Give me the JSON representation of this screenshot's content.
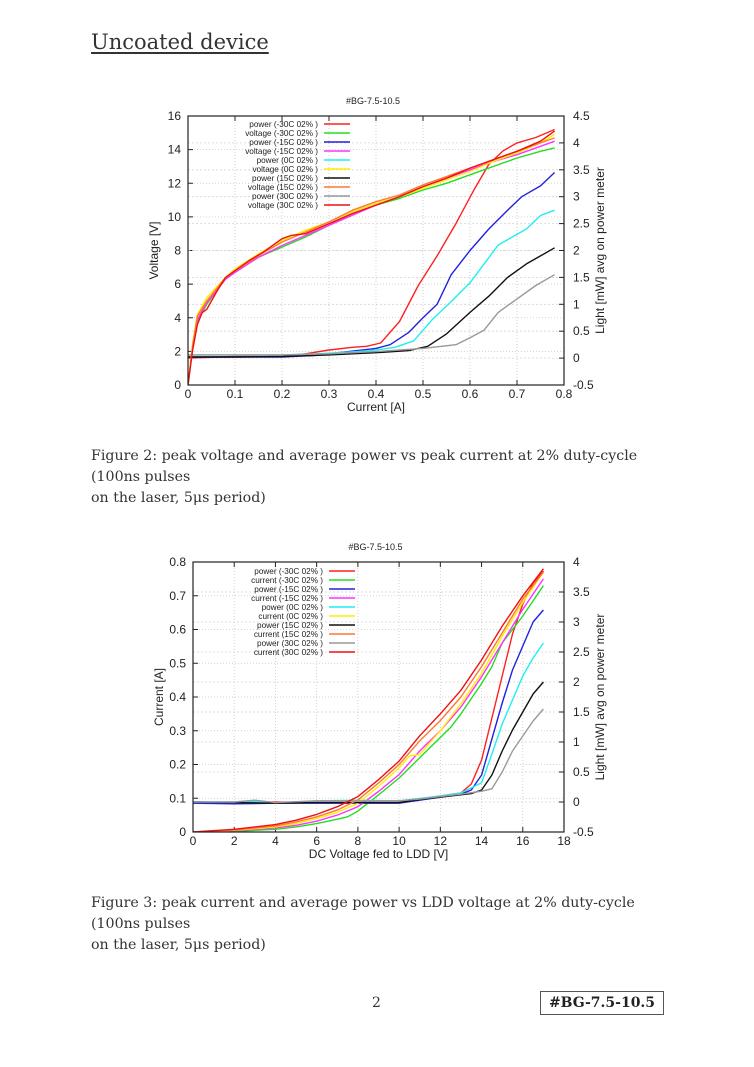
{
  "page": {
    "section_title": "Uncoated device",
    "page_number": "2",
    "doc_id": "#BG-7.5-10.5"
  },
  "figures": [
    {
      "caption_line1": "Figure 2: peak voltage and average power vs peak current at 2% duty-cycle (100ns pulses",
      "caption_line2": "on the laser, 5μs period)"
    },
    {
      "caption_line1": "Figure 3: peak current and average power vs LDD voltage at 2% duty-cycle (100ns pulses",
      "caption_line2": "on the laser, 5μs period)"
    }
  ],
  "chart_data": [
    {
      "type": "line",
      "title": "#BG-7.5-10.5",
      "xlabel": "Current [A]",
      "ylabel": "Voltage [V]",
      "y2label": "Light [mW] avg on power meter",
      "xlim": [
        0,
        0.8
      ],
      "ylim": [
        0,
        16
      ],
      "y2lim": [
        -0.5,
        4.5
      ],
      "xticks": [
        "0",
        "0.1",
        "0.2",
        "0.3",
        "0.4",
        "0.5",
        "0.6",
        "0.7",
        "0.8"
      ],
      "yticks": [
        "0",
        "2",
        "4",
        "6",
        "8",
        "10",
        "12",
        "14",
        "16"
      ],
      "y2ticks": [
        "-0.5",
        "0",
        "0.5",
        "1",
        "1.5",
        "2",
        "2.5",
        "3",
        "3.5",
        "4",
        "4.5"
      ],
      "grid": true,
      "legend_position": "top-left",
      "series": [
        {
          "name": "power (-30C 02% )",
          "color": "#ff2020",
          "axis": "y2",
          "x": [
            0,
            0.1,
            0.2,
            0.25,
            0.3,
            0.35,
            0.38,
            0.41,
            0.45,
            0.49,
            0.53,
            0.57,
            0.61,
            0.64,
            0.67,
            0.7,
            0.74,
            0.78
          ],
          "y": [
            0,
            0.03,
            0.03,
            0.08,
            0.15,
            0.2,
            0.22,
            0.28,
            0.68,
            1.35,
            1.9,
            2.5,
            3.15,
            3.6,
            3.85,
            4.0,
            4.1,
            4.25
          ]
        },
        {
          "name": "voltage (-30C 02% )",
          "color": "#22dd22",
          "axis": "y",
          "x": [
            0,
            0.01,
            0.02,
            0.04,
            0.06,
            0.08,
            0.1,
            0.15,
            0.2,
            0.25,
            0.3,
            0.35,
            0.4,
            0.45,
            0.5,
            0.55,
            0.6,
            0.65,
            0.7,
            0.75,
            0.78
          ],
          "y": [
            0,
            2.3,
            3.8,
            4.8,
            5.6,
            6.3,
            6.7,
            7.6,
            8.2,
            8.8,
            9.5,
            10.2,
            10.7,
            11.1,
            11.6,
            12.0,
            12.5,
            13.0,
            13.5,
            13.9,
            14.1
          ]
        },
        {
          "name": "power (-15C 02% )",
          "color": "#2222dd",
          "axis": "y2",
          "x": [
            0,
            0.1,
            0.2,
            0.27,
            0.32,
            0.36,
            0.4,
            0.43,
            0.47,
            0.5,
            0.53,
            0.56,
            0.6,
            0.64,
            0.68,
            0.71,
            0.75,
            0.78
          ],
          "y": [
            0.02,
            0.02,
            0.02,
            0.05,
            0.1,
            0.14,
            0.18,
            0.25,
            0.48,
            0.75,
            1.0,
            1.55,
            2.0,
            2.4,
            2.75,
            3.0,
            3.2,
            3.45
          ]
        },
        {
          "name": "voltage (-15C 02% )",
          "color": "#ff33ff",
          "axis": "y",
          "x": [
            0,
            0.01,
            0.02,
            0.04,
            0.06,
            0.08,
            0.1,
            0.15,
            0.2,
            0.25,
            0.3,
            0.35,
            0.4,
            0.45,
            0.5,
            0.55,
            0.6,
            0.65,
            0.7,
            0.75,
            0.78
          ],
          "y": [
            0,
            2.3,
            3.9,
            4.9,
            5.6,
            6.3,
            6.7,
            7.6,
            8.3,
            8.9,
            9.5,
            10.1,
            10.7,
            11.2,
            11.8,
            12.3,
            12.8,
            13.3,
            13.7,
            14.2,
            14.5
          ]
        },
        {
          "name": "power (0C 02% )",
          "color": "#22eeee",
          "axis": "y2",
          "x": [
            0,
            0.1,
            0.2,
            0.27,
            0.32,
            0.36,
            0.4,
            0.44,
            0.48,
            0.52,
            0.56,
            0.6,
            0.63,
            0.66,
            0.69,
            0.72,
            0.75,
            0.78
          ],
          "y": [
            0.06,
            0.06,
            0.06,
            0.08,
            0.1,
            0.12,
            0.15,
            0.2,
            0.32,
            0.72,
            1.05,
            1.4,
            1.75,
            2.1,
            2.25,
            2.4,
            2.65,
            2.75
          ]
        },
        {
          "name": "voltage (0C 02% )",
          "color": "#ffee00",
          "axis": "y",
          "x": [
            0,
            0.01,
            0.02,
            0.04,
            0.06,
            0.08,
            0.1,
            0.15,
            0.2,
            0.25,
            0.3,
            0.35,
            0.4,
            0.45,
            0.5,
            0.55,
            0.6,
            0.65,
            0.7,
            0.75,
            0.78
          ],
          "y": [
            0,
            2.5,
            4.2,
            5.2,
            5.8,
            6.4,
            6.9,
            7.8,
            8.6,
            9.2,
            9.7,
            10.3,
            10.8,
            11.2,
            11.7,
            12.2,
            12.7,
            13.3,
            13.8,
            14.4,
            14.9
          ]
        },
        {
          "name": "power (15C 02% )",
          "color": "#111111",
          "axis": "y2",
          "x": [
            0,
            0.1,
            0.2,
            0.3,
            0.35,
            0.4,
            0.47,
            0.51,
            0.55,
            0.6,
            0.64,
            0.68,
            0.72,
            0.75,
            0.78
          ],
          "y": [
            0.02,
            0.02,
            0.03,
            0.06,
            0.08,
            0.1,
            0.14,
            0.22,
            0.45,
            0.85,
            1.15,
            1.5,
            1.75,
            1.9,
            2.05
          ]
        },
        {
          "name": "voltage (15C 02% )",
          "color": "#ff7733",
          "axis": "y",
          "x": [
            0,
            0.01,
            0.02,
            0.04,
            0.06,
            0.08,
            0.1,
            0.15,
            0.2,
            0.25,
            0.3,
            0.35,
            0.4,
            0.45,
            0.5,
            0.55,
            0.6,
            0.65,
            0.7,
            0.75,
            0.78
          ],
          "y": [
            0,
            2.4,
            4.1,
            5.0,
            5.7,
            6.4,
            6.8,
            7.7,
            8.5,
            9.1,
            9.7,
            10.4,
            10.9,
            11.3,
            11.9,
            12.4,
            12.9,
            13.4,
            13.9,
            14.4,
            14.7
          ]
        },
        {
          "name": "power (30C 02% )",
          "color": "#999999",
          "axis": "y2",
          "x": [
            0,
            0.1,
            0.2,
            0.3,
            0.4,
            0.5,
            0.57,
            0.6,
            0.63,
            0.66,
            0.7,
            0.74,
            0.78
          ],
          "y": [
            0.06,
            0.06,
            0.06,
            0.08,
            0.12,
            0.18,
            0.25,
            0.38,
            0.52,
            0.85,
            1.1,
            1.35,
            1.55
          ]
        },
        {
          "name": "voltage (30C 02% )",
          "color": "#ee1111",
          "axis": "y",
          "x": [
            0,
            0.01,
            0.02,
            0.03,
            0.04,
            0.06,
            0.08,
            0.1,
            0.13,
            0.16,
            0.2,
            0.22,
            0.25,
            0.3,
            0.35,
            0.4,
            0.45,
            0.5,
            0.55,
            0.6,
            0.65,
            0.7,
            0.75,
            0.78
          ],
          "y": [
            0,
            2.1,
            3.6,
            4.3,
            4.5,
            5.5,
            6.4,
            6.8,
            7.4,
            7.9,
            8.7,
            8.9,
            9.0,
            9.6,
            10.2,
            10.7,
            11.2,
            11.8,
            12.3,
            12.9,
            13.4,
            13.9,
            14.5,
            15.1
          ]
        }
      ]
    },
    {
      "type": "line",
      "title": "#BG-7.5-10.5",
      "xlabel": "DC Voltage fed to LDD [V]",
      "ylabel": "Current [A]",
      "y2label": "Light [mW] avg on power meter",
      "xlim": [
        0,
        18
      ],
      "ylim": [
        0,
        0.8
      ],
      "y2lim": [
        -0.5,
        4
      ],
      "xticks": [
        "0",
        "2",
        "4",
        "6",
        "8",
        "10",
        "12",
        "14",
        "16",
        "18"
      ],
      "yticks": [
        "0",
        "0.1",
        "0.2",
        "0.3",
        "0.4",
        "0.5",
        "0.6",
        "0.7",
        "0.8"
      ],
      "y2ticks": [
        "-0.5",
        "0",
        "0.5",
        "1",
        "1.5",
        "2",
        "2.5",
        "3",
        "3.5",
        "4"
      ],
      "grid": true,
      "legend_position": "top-left",
      "series": [
        {
          "name": "power (-30C 02% )",
          "color": "#ff2020",
          "axis": "y2",
          "x": [
            0,
            2,
            4,
            6,
            8,
            10,
            11,
            12,
            13,
            13.5,
            14,
            14.5,
            15,
            15.5,
            16,
            16.5,
            17
          ],
          "y": [
            0,
            -0.01,
            0,
            -0.01,
            -0.01,
            -0.01,
            0.05,
            0.1,
            0.15,
            0.3,
            0.7,
            1.4,
            2.1,
            2.8,
            3.3,
            3.65,
            3.85
          ]
        },
        {
          "name": "current (-30C 02% )",
          "color": "#22dd22",
          "axis": "y",
          "x": [
            0,
            2,
            4,
            5,
            6,
            7,
            7.5,
            8,
            9,
            10,
            11,
            12,
            12.5,
            13,
            14,
            14.5,
            15,
            16,
            17
          ],
          "y": [
            0,
            0.002,
            0.008,
            0.015,
            0.025,
            0.038,
            0.045,
            0.062,
            0.11,
            0.16,
            0.22,
            0.28,
            0.31,
            0.35,
            0.44,
            0.49,
            0.56,
            0.64,
            0.73
          ]
        },
        {
          "name": "power (-15C 02% )",
          "color": "#2222dd",
          "axis": "y2",
          "x": [
            0,
            2,
            4,
            6,
            8,
            10,
            11,
            12,
            13,
            13.5,
            14,
            14.5,
            15,
            15.5,
            16,
            16.5,
            17
          ],
          "y": [
            -0.02,
            -0.03,
            -0.02,
            -0.02,
            -0.02,
            -0.02,
            0.03,
            0.08,
            0.13,
            0.2,
            0.45,
            1.05,
            1.65,
            2.2,
            2.6,
            3.0,
            3.2
          ]
        },
        {
          "name": "current (-15C 02% )",
          "color": "#ff33ff",
          "axis": "y",
          "x": [
            0,
            2,
            4,
            5,
            6,
            7,
            8,
            9,
            10,
            11,
            12,
            13,
            14,
            15,
            16,
            17
          ],
          "y": [
            0,
            0.004,
            0.012,
            0.02,
            0.032,
            0.05,
            0.075,
            0.12,
            0.17,
            0.24,
            0.3,
            0.37,
            0.46,
            0.56,
            0.66,
            0.75
          ]
        },
        {
          "name": "power (0C 02% )",
          "color": "#22eeee",
          "axis": "y2",
          "x": [
            0,
            2,
            3,
            4,
            6,
            8,
            10,
            11,
            12,
            13,
            14,
            14.5,
            15,
            15.5,
            16,
            16.5,
            17
          ],
          "y": [
            0,
            0,
            0.01,
            -0.02,
            0.02,
            0.03,
            0.02,
            0.06,
            0.1,
            0.15,
            0.32,
            0.8,
            1.3,
            1.7,
            2.1,
            2.4,
            2.65
          ]
        },
        {
          "name": "current (0C 02% )",
          "color": "#ffee00",
          "axis": "y",
          "x": [
            0,
            2,
            4,
            5,
            6,
            7,
            8,
            9,
            10,
            10.5,
            11,
            12,
            13,
            14,
            15,
            16,
            17
          ],
          "y": [
            0,
            0.005,
            0.015,
            0.025,
            0.04,
            0.058,
            0.085,
            0.135,
            0.19,
            0.225,
            0.23,
            0.3,
            0.38,
            0.47,
            0.58,
            0.68,
            0.77
          ]
        },
        {
          "name": "power (15C 02% )",
          "color": "#111111",
          "axis": "y2",
          "x": [
            0,
            2,
            4,
            6,
            8,
            10,
            11,
            12,
            13,
            13.5,
            14,
            14.5,
            15,
            15.5,
            16,
            16.5,
            17
          ],
          "y": [
            0,
            -0.01,
            -0.02,
            -0.01,
            -0.01,
            -0.01,
            0.04,
            0.08,
            0.12,
            0.14,
            0.2,
            0.45,
            0.85,
            1.2,
            1.5,
            1.8,
            2.0
          ]
        },
        {
          "name": "current (15C 02% )",
          "color": "#ff7733",
          "axis": "y",
          "x": [
            0,
            2,
            4,
            5,
            6,
            7,
            8,
            9,
            10,
            11,
            12,
            13,
            14,
            15,
            16,
            17
          ],
          "y": [
            0,
            0.006,
            0.018,
            0.03,
            0.045,
            0.065,
            0.095,
            0.145,
            0.2,
            0.27,
            0.33,
            0.4,
            0.49,
            0.59,
            0.69,
            0.77
          ]
        },
        {
          "name": "power (30C 02% )",
          "color": "#999999",
          "axis": "y2",
          "x": [
            0,
            2,
            3,
            4,
            6,
            8,
            10,
            11,
            12,
            13,
            14,
            14.5,
            15,
            15.5,
            16,
            16.5,
            17
          ],
          "y": [
            0,
            0,
            0.03,
            -0.01,
            0.02,
            0.02,
            0.02,
            0.05,
            0.09,
            0.13,
            0.18,
            0.22,
            0.5,
            0.85,
            1.1,
            1.35,
            1.55
          ]
        },
        {
          "name": "current (30C 02% )",
          "color": "#ee1111",
          "axis": "y",
          "x": [
            0,
            2,
            4,
            5,
            6,
            7,
            8,
            9,
            10,
            11,
            12,
            13,
            14,
            15,
            16,
            17
          ],
          "y": [
            0,
            0.008,
            0.022,
            0.035,
            0.052,
            0.075,
            0.105,
            0.155,
            0.21,
            0.285,
            0.35,
            0.42,
            0.51,
            0.61,
            0.7,
            0.78
          ]
        }
      ]
    }
  ]
}
